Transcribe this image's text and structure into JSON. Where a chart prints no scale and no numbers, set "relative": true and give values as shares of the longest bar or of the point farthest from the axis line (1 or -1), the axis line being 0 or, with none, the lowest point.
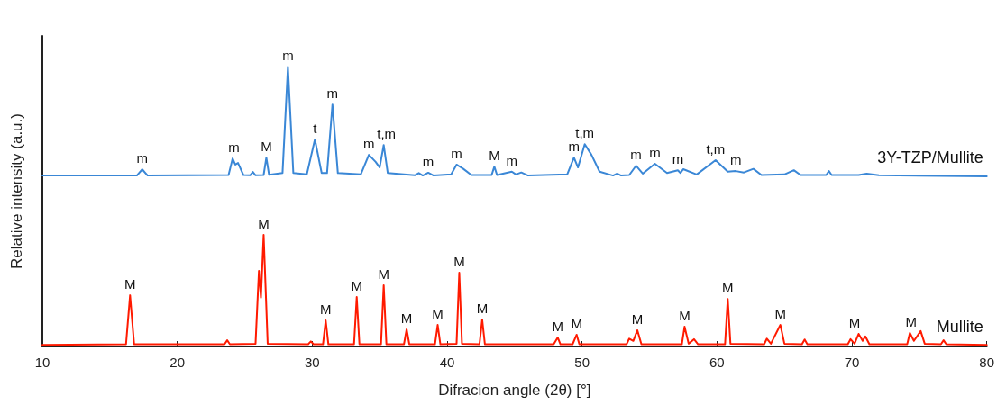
{
  "chart_data": {
    "type": "line",
    "relative": true,
    "xlabel": "Difracion angle (2θ) [°]",
    "ylabel": "Relative intensity (a.u.)",
    "xlim": [
      10,
      80
    ],
    "xticks": [
      10,
      20,
      30,
      40,
      50,
      60,
      70,
      80
    ],
    "legend": false,
    "grid": false,
    "marker": "none",
    "line_style": "solid",
    "series": [
      {
        "name": "3Y-TZP/Mullite",
        "color": "#3a87d6",
        "x": [
          10,
          17.0,
          17.4,
          17.8,
          23.8,
          24.1,
          24.3,
          24.5,
          24.9,
          25.4,
          25.6,
          25.8,
          26.4,
          26.6,
          26.8,
          27.8,
          28.2,
          28.6,
          29.6,
          30.2,
          30.7,
          31.1,
          31.5,
          31.9,
          33.6,
          34.2,
          34.7,
          35.0,
          35.3,
          35.6,
          37.6,
          37.9,
          38.2,
          38.6,
          39.0,
          40.3,
          40.7,
          41.2,
          41.8,
          43.3,
          43.5,
          43.7,
          44.8,
          45.1,
          45.5,
          46.0,
          48.9,
          49.4,
          49.7,
          50.2,
          50.7,
          51.3,
          52.3,
          52.6,
          52.9,
          53.5,
          54.0,
          54.5,
          55.4,
          56.3,
          57.1,
          57.3,
          57.5,
          58.5,
          59.9,
          60.8,
          61.4,
          62.0,
          62.7,
          63.3,
          65.0,
          65.7,
          66.2,
          68.1,
          68.3,
          68.5,
          70.5,
          71.1,
          72,
          80
        ],
        "values": [
          0.611,
          0.611,
          0.633,
          0.611,
          0.613,
          0.672,
          0.65,
          0.656,
          0.613,
          0.612,
          0.624,
          0.612,
          0.613,
          0.675,
          0.614,
          0.62,
          1.0,
          0.62,
          0.615,
          0.74,
          0.62,
          0.62,
          0.865,
          0.62,
          0.615,
          0.685,
          0.66,
          0.64,
          0.72,
          0.62,
          0.612,
          0.62,
          0.611,
          0.621,
          0.611,
          0.615,
          0.65,
          0.635,
          0.613,
          0.613,
          0.643,
          0.613,
          0.625,
          0.615,
          0.622,
          0.611,
          0.615,
          0.675,
          0.64,
          0.723,
          0.685,
          0.625,
          0.611,
          0.618,
          0.611,
          0.613,
          0.646,
          0.618,
          0.653,
          0.62,
          0.63,
          0.62,
          0.634,
          0.615,
          0.666,
          0.625,
          0.627,
          0.622,
          0.635,
          0.613,
          0.615,
          0.63,
          0.613,
          0.613,
          0.627,
          0.613,
          0.613,
          0.618,
          0.612,
          0.608
        ]
      },
      {
        "name": "Mullite",
        "color": "#ff1a00",
        "x": [
          10,
          16.2,
          16.5,
          16.8,
          23.5,
          23.7,
          23.9,
          25.8,
          26.05,
          26.2,
          26.4,
          26.7,
          29.7,
          29.9,
          30.1,
          30.8,
          31.0,
          31.2,
          33.1,
          33.3,
          33.5,
          35.1,
          35.3,
          35.5,
          36.8,
          37.0,
          37.2,
          39.1,
          39.3,
          39.5,
          40.7,
          40.9,
          41.1,
          42.4,
          42.6,
          42.8,
          47.9,
          48.2,
          48.4,
          49.3,
          49.6,
          49.8,
          53.3,
          53.5,
          53.8,
          54.1,
          54.4,
          57.4,
          57.6,
          57.9,
          58.3,
          58.6,
          60.6,
          60.8,
          61.0,
          63.5,
          63.7,
          64.0,
          64.7,
          65.0,
          66.3,
          66.5,
          66.7,
          69.7,
          69.9,
          70.2,
          70.5,
          70.8,
          71.0,
          71.3,
          74.1,
          74.3,
          74.6,
          75.1,
          75.4,
          76.6,
          76.8,
          77,
          80
        ],
        "values": [
          0.006,
          0.008,
          0.183,
          0.008,
          0.008,
          0.022,
          0.008,
          0.01,
          0.27,
          0.175,
          0.399,
          0.01,
          0.008,
          0.018,
          0.008,
          0.008,
          0.093,
          0.008,
          0.008,
          0.177,
          0.008,
          0.008,
          0.219,
          0.008,
          0.008,
          0.061,
          0.008,
          0.008,
          0.077,
          0.008,
          0.01,
          0.264,
          0.01,
          0.008,
          0.096,
          0.008,
          0.008,
          0.032,
          0.008,
          0.008,
          0.042,
          0.008,
          0.008,
          0.028,
          0.02,
          0.058,
          0.008,
          0.008,
          0.071,
          0.01,
          0.026,
          0.008,
          0.008,
          0.17,
          0.01,
          0.008,
          0.028,
          0.01,
          0.077,
          0.01,
          0.008,
          0.025,
          0.008,
          0.008,
          0.026,
          0.01,
          0.045,
          0.02,
          0.036,
          0.008,
          0.008,
          0.048,
          0.02,
          0.055,
          0.01,
          0.008,
          0.022,
          0.008,
          0.006
        ]
      }
    ],
    "annotations": [
      {
        "text": "m",
        "x": 17.4,
        "y": 0.633
      },
      {
        "text": "m",
        "x": 24.2,
        "y": 0.672
      },
      {
        "text": "M",
        "x": 26.6,
        "y": 0.675
      },
      {
        "text": "m",
        "x": 28.2,
        "y": 1.0
      },
      {
        "text": "t",
        "x": 30.2,
        "y": 0.74
      },
      {
        "text": "m",
        "x": 31.5,
        "y": 0.865
      },
      {
        "text": "m",
        "x": 34.2,
        "y": 0.685
      },
      {
        "text": "t,m",
        "x": 35.5,
        "y": 0.72
      },
      {
        "text": "m",
        "x": 38.6,
        "y": 0.621
      },
      {
        "text": "m",
        "x": 40.7,
        "y": 0.65
      },
      {
        "text": "M",
        "x": 43.5,
        "y": 0.643
      },
      {
        "text": "m",
        "x": 44.8,
        "y": 0.625
      },
      {
        "text": "m",
        "x": 49.4,
        "y": 0.675
      },
      {
        "text": "t,m",
        "x": 50.2,
        "y": 0.723
      },
      {
        "text": "m",
        "x": 54.0,
        "y": 0.646
      },
      {
        "text": "m",
        "x": 55.4,
        "y": 0.653
      },
      {
        "text": "m",
        "x": 57.1,
        "y": 0.63
      },
      {
        "text": "t,m",
        "x": 59.9,
        "y": 0.666
      },
      {
        "text": "m",
        "x": 61.4,
        "y": 0.627
      },
      {
        "text": "M",
        "x": 16.5,
        "y": 0.183
      },
      {
        "text": "M",
        "x": 26.4,
        "y": 0.399
      },
      {
        "text": "M",
        "x": 31.0,
        "y": 0.093
      },
      {
        "text": "M",
        "x": 33.3,
        "y": 0.177
      },
      {
        "text": "M",
        "x": 35.3,
        "y": 0.219
      },
      {
        "text": "M",
        "x": 37.0,
        "y": 0.061
      },
      {
        "text": "M",
        "x": 39.3,
        "y": 0.077
      },
      {
        "text": "M",
        "x": 40.9,
        "y": 0.264
      },
      {
        "text": "M",
        "x": 42.6,
        "y": 0.096
      },
      {
        "text": "M",
        "x": 48.2,
        "y": 0.032
      },
      {
        "text": "M",
        "x": 49.6,
        "y": 0.042
      },
      {
        "text": "M",
        "x": 54.1,
        "y": 0.058
      },
      {
        "text": "M",
        "x": 57.6,
        "y": 0.071
      },
      {
        "text": "M",
        "x": 60.8,
        "y": 0.17
      },
      {
        "text": "M",
        "x": 64.7,
        "y": 0.077
      },
      {
        "text": "M",
        "x": 70.2,
        "y": 0.045
      },
      {
        "text": "M",
        "x": 74.4,
        "y": 0.048
      }
    ]
  }
}
